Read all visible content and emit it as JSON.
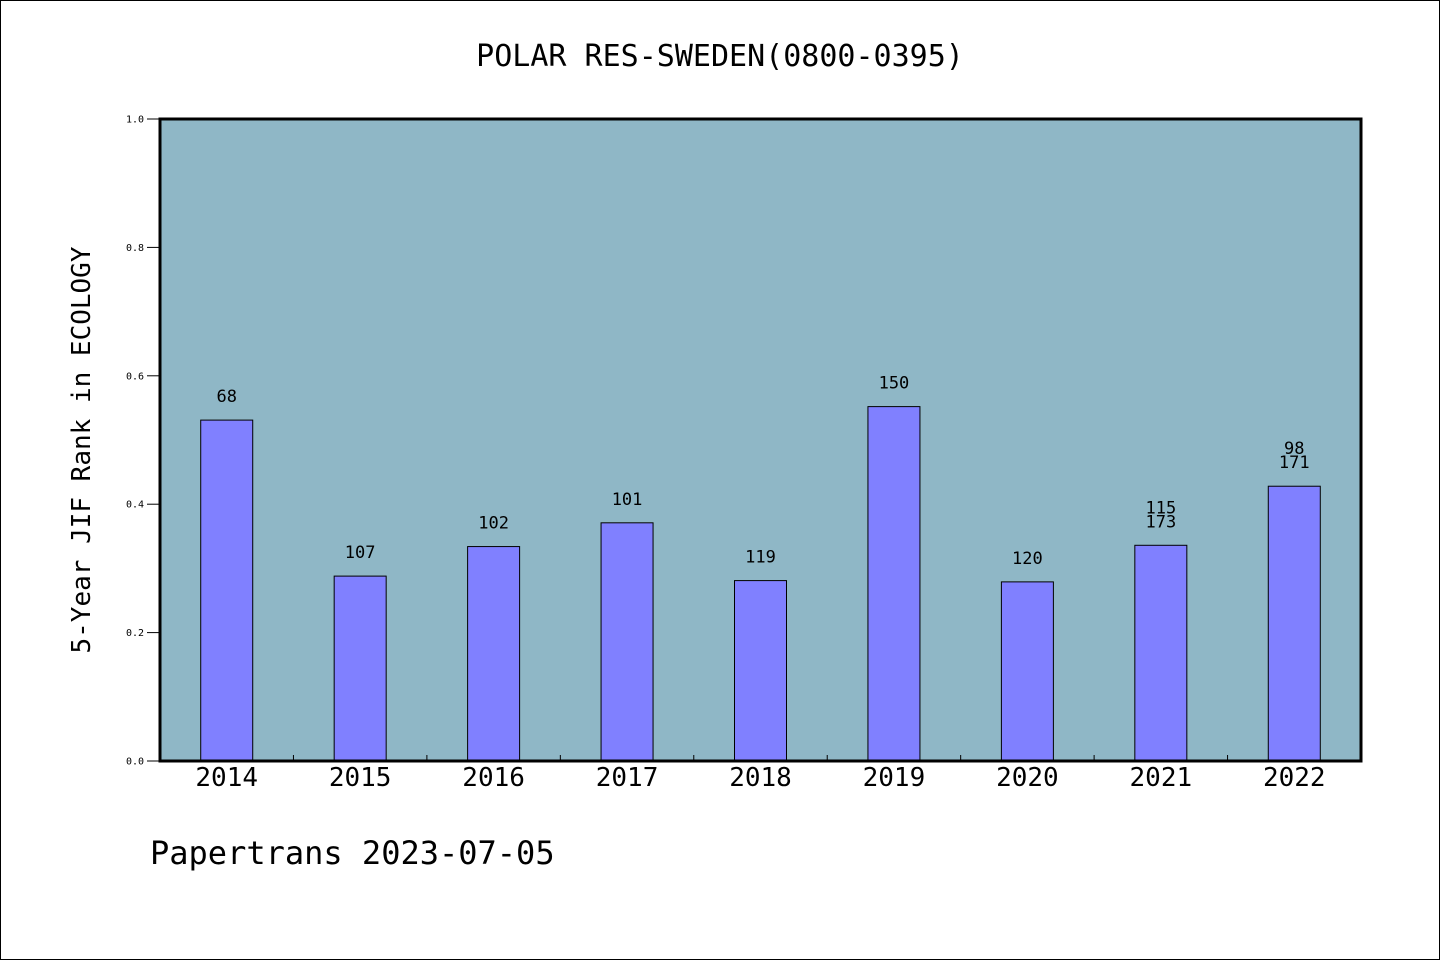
{
  "chart_data": {
    "type": "bar",
    "title": "POLAR RES-SWEDEN(0800-0395)",
    "ylabel": "5-Year JIF Rank in ECOLOGY",
    "xlabel": "",
    "ylim": [
      0,
      1.0
    ],
    "yticks": [
      0.0,
      0.2,
      0.4,
      0.6,
      0.8,
      1.0
    ],
    "ytick_labels": [
      "0.0",
      "0.2",
      "0.4",
      "0.6",
      "0.8",
      "1.0"
    ],
    "grid": false,
    "categories": [
      "2014",
      "2015",
      "2016",
      "2017",
      "2018",
      "2019",
      "2020",
      "2021",
      "2022"
    ],
    "values": [
      0.531,
      0.288,
      0.334,
      0.371,
      0.281,
      0.552,
      0.279,
      0.336,
      0.428
    ],
    "bar_labels": [
      [
        "68"
      ],
      [
        "107"
      ],
      [
        "102"
      ],
      [
        "101"
      ],
      [
        "119"
      ],
      [
        "150"
      ],
      [
        "120"
      ],
      [
        "115",
        "173"
      ],
      [
        "98",
        "171"
      ]
    ],
    "colors": {
      "plot_background": "#8fb7c6",
      "bar_fill": "#8080ff",
      "bar_edge": "#000000"
    }
  },
  "footer": "Papertrans 2023-07-05"
}
